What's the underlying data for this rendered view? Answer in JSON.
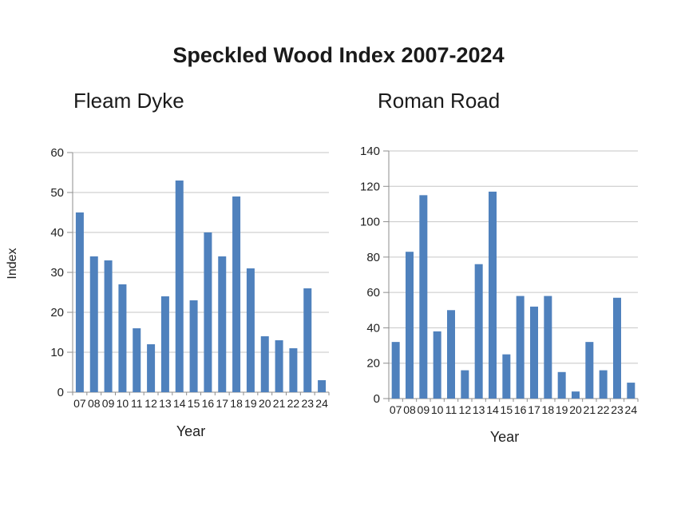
{
  "page": {
    "title": "Speckled Wood Index 2007-2024"
  },
  "colors": {
    "bar": "#4F81BD",
    "gridline": "#C6C6C6",
    "axis": "#8E8E8E",
    "tick_text": "#1F1F1F",
    "background": "#FFFFFF"
  },
  "chart_data": [
    {
      "type": "bar",
      "title": "Fleam Dyke",
      "categories": [
        "07",
        "08",
        "09",
        "10",
        "11",
        "12",
        "13",
        "14",
        "15",
        "16",
        "17",
        "18",
        "19",
        "20",
        "21",
        "22",
        "23",
        "24"
      ],
      "values": [
        45,
        34,
        33,
        27,
        16,
        12,
        24,
        53,
        23,
        40,
        34,
        49,
        31,
        14,
        13,
        11,
        26,
        3
      ],
      "xlabel": "Year",
      "ylabel": "Index",
      "ylim": [
        0,
        60
      ],
      "ytick_step": 10,
      "grid": true,
      "legend": "none"
    },
    {
      "type": "bar",
      "title": "Roman Road",
      "categories": [
        "07",
        "08",
        "09",
        "10",
        "11",
        "12",
        "13",
        "14",
        "15",
        "16",
        "17",
        "18",
        "19",
        "20",
        "21",
        "22",
        "23",
        "24"
      ],
      "values": [
        32,
        83,
        115,
        38,
        50,
        16,
        76,
        117,
        25,
        58,
        52,
        58,
        15,
        4,
        32,
        16,
        57,
        9
      ],
      "xlabel": "Year",
      "ylabel": "",
      "ylim": [
        0,
        140
      ],
      "ytick_step": 20,
      "grid": true,
      "legend": "none"
    }
  ]
}
